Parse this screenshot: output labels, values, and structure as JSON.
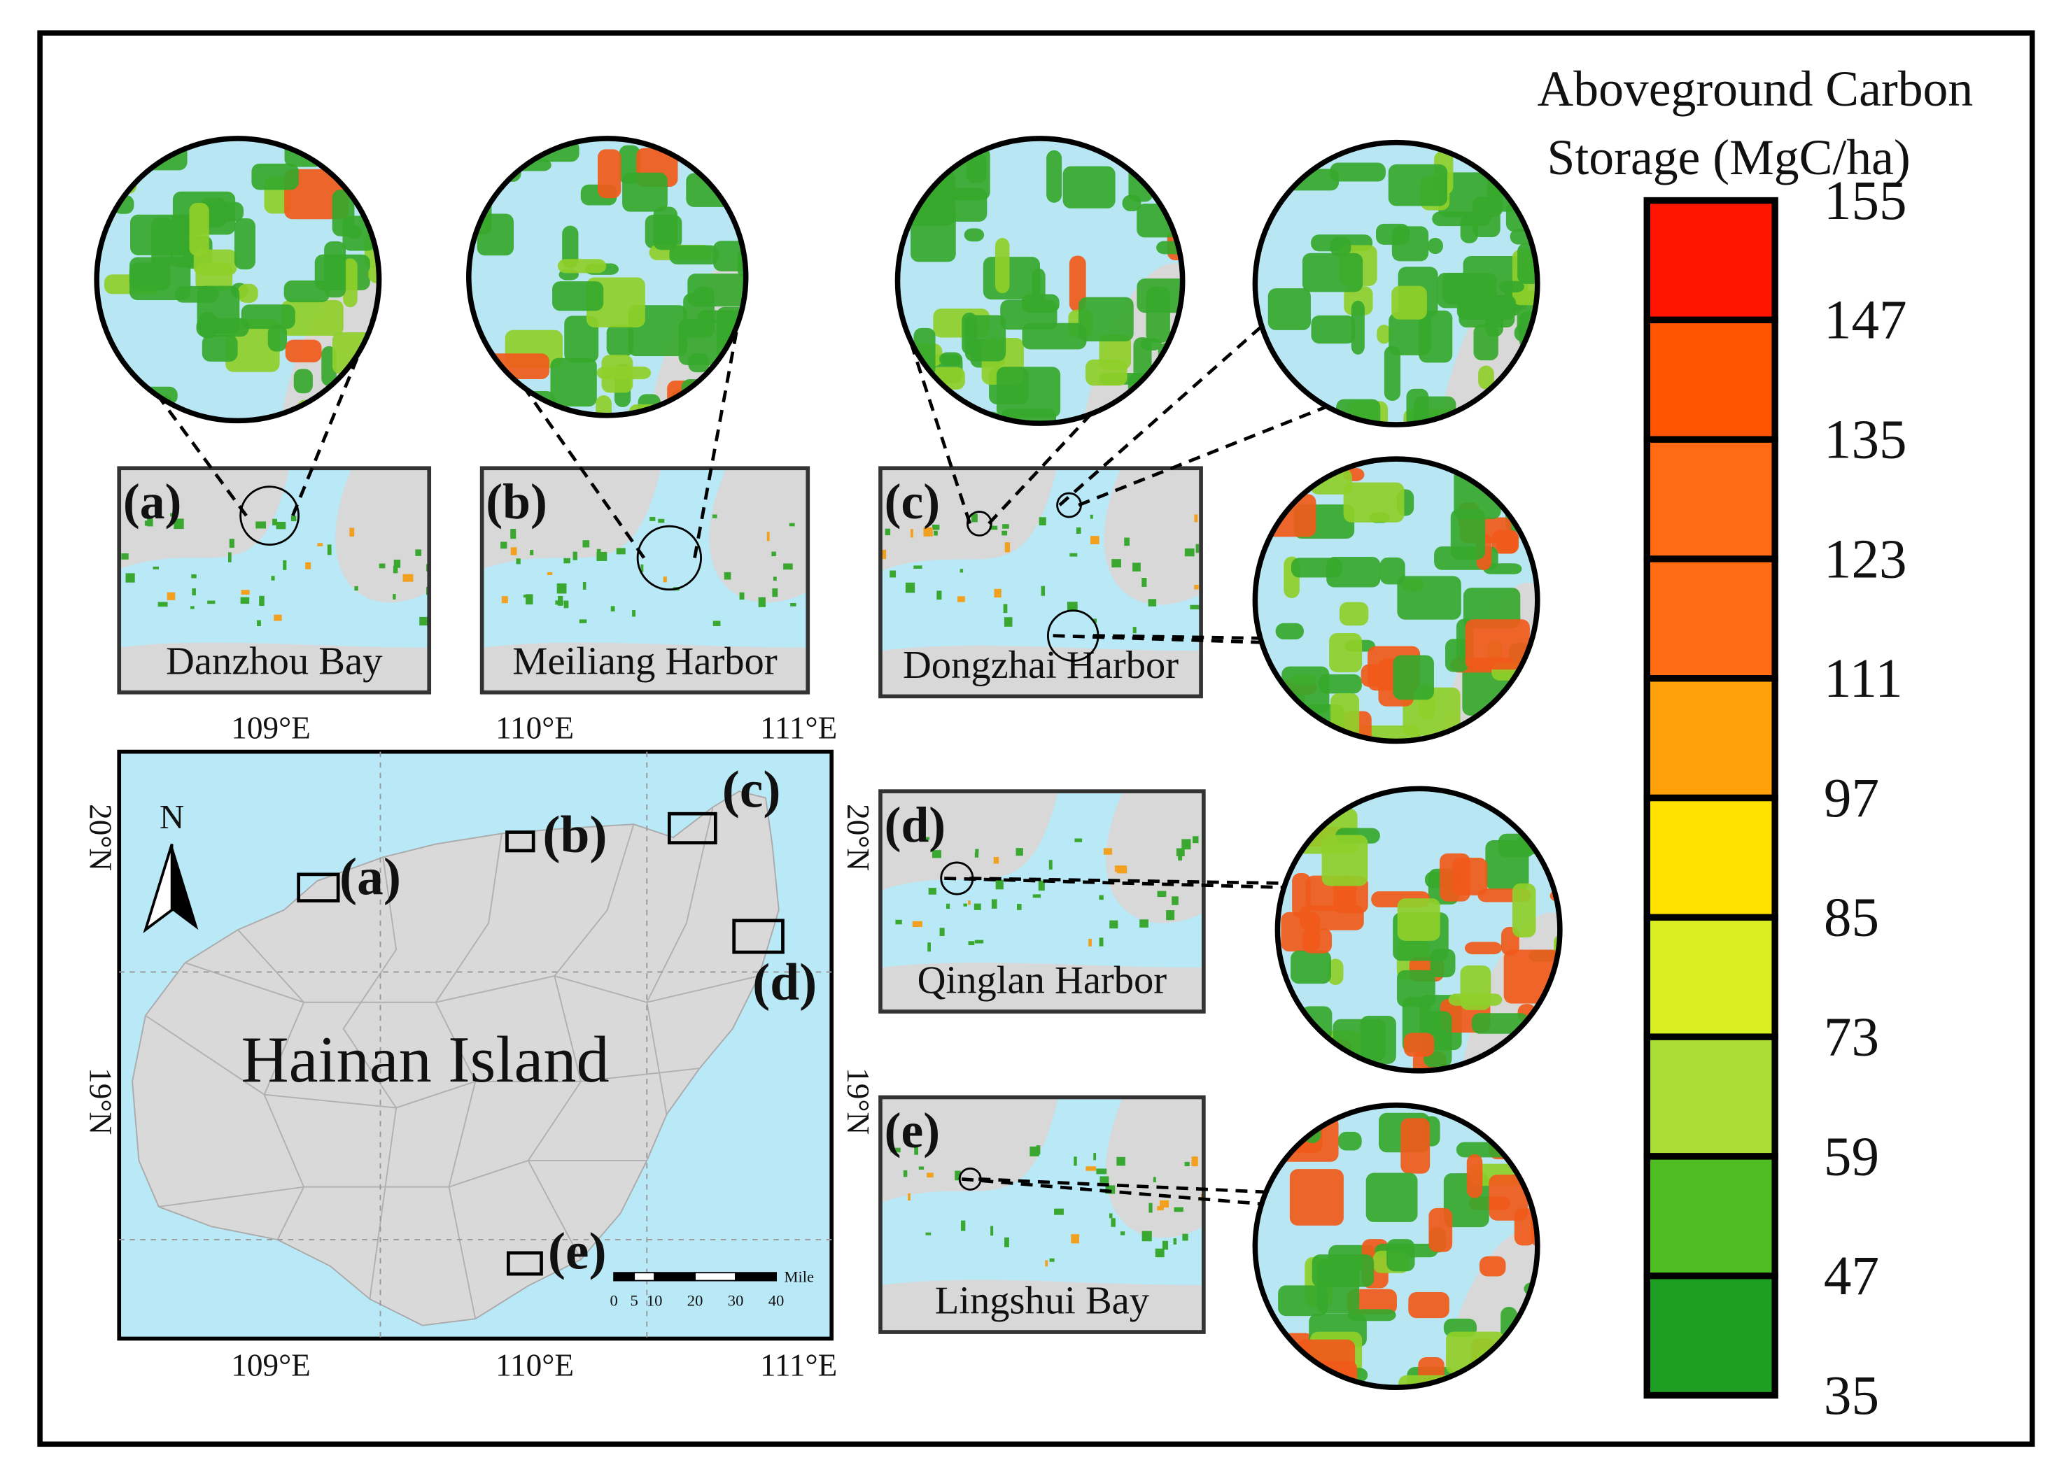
{
  "legend": {
    "title": [
      "Aboveground Carbon",
      "Storage (MgC/ha)"
    ],
    "ticks": [
      155,
      147,
      135,
      123,
      111,
      97,
      85,
      73,
      59,
      47,
      35
    ],
    "colors": [
      "#ff1500",
      "#ff5500",
      "#ff6a12",
      "#ff6c14",
      "#ffa10a",
      "#ffe200",
      "#d9ef22",
      "#a9dc34",
      "#4fbe22",
      "#1e9e22"
    ]
  },
  "map": {
    "label": "Hainan Island",
    "north": "N",
    "lon_top": [
      "109°E",
      "110°E",
      "111°E"
    ],
    "lon_bottom": [
      "109°E",
      "110°E",
      "111°E"
    ],
    "lat_left": [
      "20°N",
      "19°N"
    ],
    "lat_right": [
      "20°N",
      "19°N"
    ],
    "region_labels": [
      "(a)",
      "(b)",
      "(c)",
      "(d)",
      "(e)"
    ],
    "scale_bar": {
      "ticks": [
        0,
        5,
        10,
        20,
        30,
        40
      ],
      "unit": "Mile"
    }
  },
  "insets": [
    {
      "label": "(a)",
      "name": "Danzhou Bay"
    },
    {
      "label": "(b)",
      "name": "Meiliang Harbor"
    },
    {
      "label": "(c)",
      "name": "Dongzhai Harbor"
    },
    {
      "label": "(d)",
      "name": "Qinglan Harbor"
    },
    {
      "label": "(e)",
      "name": "Lingshui Bay"
    }
  ]
}
